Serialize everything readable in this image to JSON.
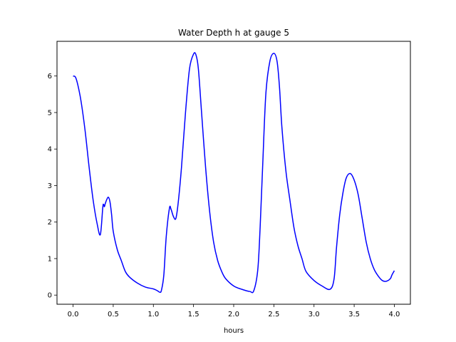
{
  "chart_data": {
    "type": "line",
    "title": "Water Depth h at gauge 5",
    "xlabel": "hours",
    "ylabel": "",
    "xlim": [
      -0.2,
      4.2
    ],
    "ylim": [
      -0.25,
      6.95
    ],
    "xticks": [
      0.0,
      0.5,
      1.0,
      1.5,
      2.0,
      2.5,
      3.0,
      3.5,
      4.0
    ],
    "xtick_labels": [
      "0.0",
      "0.5",
      "1.0",
      "1.5",
      "2.0",
      "2.5",
      "3.0",
      "3.5",
      "4.0"
    ],
    "yticks": [
      0,
      1,
      2,
      3,
      4,
      5,
      6
    ],
    "ytick_labels": [
      "0",
      "1",
      "2",
      "3",
      "4",
      "5",
      "6"
    ],
    "grid": false,
    "series": [
      {
        "color": "#0000ff",
        "x": [
          0.0,
          0.03,
          0.06,
          0.1,
          0.15,
          0.2,
          0.25,
          0.3,
          0.34,
          0.37,
          0.38,
          0.39,
          0.4,
          0.42,
          0.44,
          0.46,
          0.48,
          0.5,
          0.55,
          0.6,
          0.65,
          0.7,
          0.8,
          0.9,
          1.0,
          1.05,
          1.08,
          1.1,
          1.13,
          1.16,
          1.2,
          1.22,
          1.25,
          1.28,
          1.31,
          1.35,
          1.4,
          1.45,
          1.5,
          1.53,
          1.56,
          1.6,
          1.65,
          1.7,
          1.75,
          1.8,
          1.85,
          1.9,
          2.0,
          2.1,
          2.2,
          2.25,
          2.3,
          2.33,
          2.36,
          2.4,
          2.45,
          2.5,
          2.54,
          2.57,
          2.6,
          2.65,
          2.7,
          2.75,
          2.8,
          2.85,
          2.9,
          3.0,
          3.1,
          3.2,
          3.25,
          3.28,
          3.32,
          3.36,
          3.4,
          3.45,
          3.5,
          3.55,
          3.6,
          3.65,
          3.7,
          3.75,
          3.8,
          3.85,
          3.9,
          3.95,
          3.97,
          4.0
        ],
        "y": [
          6.0,
          5.97,
          5.75,
          5.3,
          4.5,
          3.5,
          2.6,
          1.95,
          1.66,
          2.4,
          2.48,
          2.42,
          2.5,
          2.62,
          2.68,
          2.55,
          2.2,
          1.75,
          1.25,
          0.95,
          0.65,
          0.5,
          0.33,
          0.22,
          0.17,
          0.12,
          0.08,
          0.13,
          0.55,
          1.6,
          2.38,
          2.35,
          2.15,
          2.1,
          2.55,
          3.5,
          5.0,
          6.2,
          6.6,
          6.58,
          6.2,
          5.0,
          3.5,
          2.3,
          1.45,
          0.95,
          0.65,
          0.45,
          0.25,
          0.16,
          0.1,
          0.12,
          0.7,
          1.9,
          3.5,
          5.5,
          6.4,
          6.62,
          6.4,
          5.7,
          4.6,
          3.4,
          2.6,
          1.85,
          1.35,
          1.0,
          0.65,
          0.4,
          0.25,
          0.16,
          0.45,
          1.3,
          2.2,
          2.8,
          3.2,
          3.33,
          3.15,
          2.75,
          2.1,
          1.45,
          1.0,
          0.7,
          0.52,
          0.4,
          0.38,
          0.45,
          0.55,
          0.67
        ]
      }
    ]
  }
}
